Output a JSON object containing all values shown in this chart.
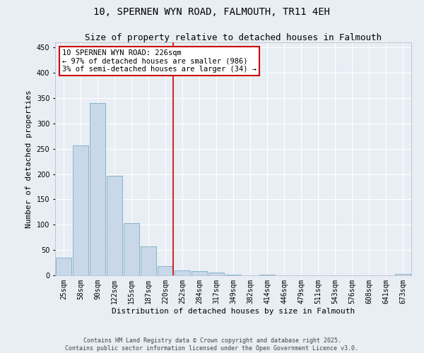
{
  "title": "10, SPERNEN WYN ROAD, FALMOUTH, TR11 4EH",
  "subtitle": "Size of property relative to detached houses in Falmouth",
  "xlabel": "Distribution of detached houses by size in Falmouth",
  "ylabel": "Number of detached properties",
  "bar_color": "#c8d8e8",
  "bar_edge_color": "#7aaac8",
  "background_color": "#e8eef4",
  "grid_color": "#ffffff",
  "bins": [
    "25sqm",
    "58sqm",
    "90sqm",
    "122sqm",
    "155sqm",
    "187sqm",
    "220sqm",
    "252sqm",
    "284sqm",
    "317sqm",
    "349sqm",
    "382sqm",
    "414sqm",
    "446sqm",
    "479sqm",
    "511sqm",
    "543sqm",
    "576sqm",
    "608sqm",
    "641sqm",
    "673sqm"
  ],
  "values": [
    35,
    256,
    340,
    196,
    103,
    57,
    18,
    10,
    8,
    5,
    2,
    0,
    1,
    0,
    0,
    0,
    0,
    0,
    0,
    0,
    3
  ],
  "property_line_label": "10 SPERNEN WYN ROAD: 226sqm",
  "annotation_line1": "← 97% of detached houses are smaller (986)",
  "annotation_line2": "3% of semi-detached houses are larger (34) →",
  "annotation_box_color": "#ffffff",
  "annotation_box_edge_color": "#cc0000",
  "vline_color": "#cc0000",
  "vline_bin_index": 6,
  "ylim": [
    0,
    460
  ],
  "yticks": [
    0,
    50,
    100,
    150,
    200,
    250,
    300,
    350,
    400,
    450
  ],
  "footer_line1": "Contains HM Land Registry data © Crown copyright and database right 2025.",
  "footer_line2": "Contains public sector information licensed under the Open Government Licence v3.0.",
  "title_fontsize": 10,
  "subtitle_fontsize": 9,
  "axis_label_fontsize": 8,
  "tick_fontsize": 7,
  "annotation_fontsize": 7.5,
  "footer_fontsize": 6
}
